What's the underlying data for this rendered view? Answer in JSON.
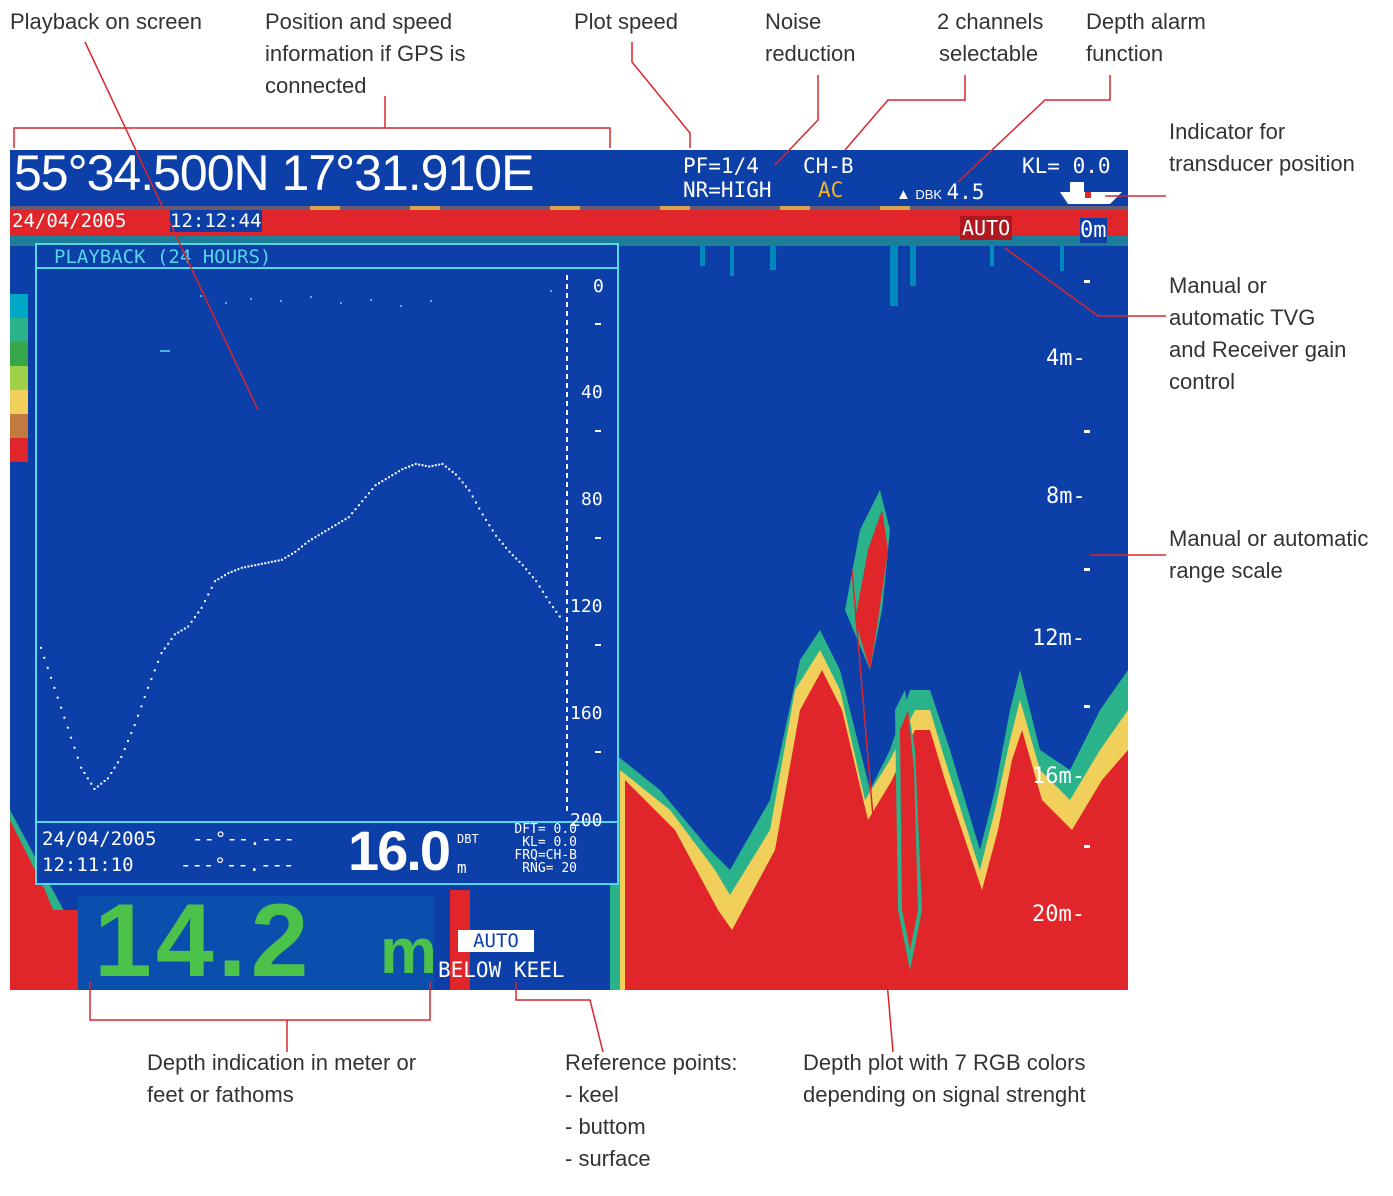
{
  "callouts": {
    "playback": [
      "Playback on screen"
    ],
    "position": [
      "Position and speed",
      "information if GPS is",
      "connected"
    ],
    "plot_speed": [
      "Plot speed"
    ],
    "noise": [
      "Noise",
      "reduction"
    ],
    "channels": [
      "2 channels",
      "selectable"
    ],
    "alarm": [
      "Depth alarm",
      "function"
    ],
    "transducer": [
      "Indicator for",
      "transducer position"
    ],
    "tvg": [
      "Manual or",
      "automatic TVG",
      "and Receiver gain",
      "control"
    ],
    "range": [
      "Manual or automatic",
      "range scale"
    ],
    "depth_ind": [
      "Depth indication in meter or",
      "feet or fathoms"
    ],
    "reference": [
      "Reference points:",
      "- keel",
      "- buttom",
      "- surface"
    ],
    "plot_colors": [
      "Depth plot with 7 RGB colors",
      "depending on signal strenght"
    ]
  },
  "screen": {
    "position": "55°34.500N 17°31.910E",
    "pf": "PF=1/4",
    "nr": "NR=HIGH",
    "ch": "CH-B",
    "ac": "AC",
    "kl": "KL= 0.0",
    "alarm_label": "DBK",
    "alarm_value": "4.5",
    "date": "24/04/2005",
    "time": "12:12:44",
    "tvg_mode": "AUTO",
    "scale": [
      "0m",
      "4m-",
      "8m-",
      "12m-",
      "16m-",
      "20m-"
    ],
    "playback_title": "PLAYBACK (24 HOURS)",
    "pb_scale": [
      "0",
      "40",
      "80",
      "120",
      "160",
      "200"
    ],
    "pb_date": "24/04/2005",
    "pb_time": "12:11:10",
    "pb_lat": "--°--.---",
    "pb_lon": "---°--.---",
    "pb_depth": "16.0",
    "pb_unit": "m",
    "pb_ref": "DBT",
    "pb_params": [
      "DFT=  0.0",
      "KL=  0.0",
      "FRQ=CH-B",
      "RNG=   20"
    ],
    "depth": "14.2",
    "depth_unit": "m",
    "depth_mode": "AUTO",
    "reference": "BELOW KEEL"
  },
  "colors": {
    "background": "#0d3fa8",
    "echo_palette": [
      "#00a8c8",
      "#2ab38a",
      "#37a84a",
      "#9ed04a",
      "#f0cf5a",
      "#c27a3e",
      "#e1262b"
    ],
    "leader": "#d9262c",
    "screen_text": "#ffffff",
    "playback_text": "#56d6e8",
    "depth_text": "#4cc24a",
    "accent_text": "#f0b429"
  },
  "chart_data": {
    "type": "line",
    "title": "PLAYBACK (24 HOURS)",
    "xlabel": "",
    "ylabel": "",
    "ylim": [
      0,
      200
    ],
    "y_inverted": true,
    "y_ticks": [
      0,
      40,
      80,
      120,
      160,
      200
    ],
    "series": [
      {
        "values": [
          135,
          150,
          165,
          180,
          188,
          184,
          176,
          164,
          150,
          137,
          130,
          127,
          120,
          110,
          107,
          105,
          104,
          103,
          102,
          99,
          95,
          92,
          89,
          86,
          80,
          74,
          71,
          68,
          66,
          67,
          66,
          70,
          76,
          85,
          93,
          99,
          104,
          110,
          118,
          125
        ]
      }
    ]
  }
}
